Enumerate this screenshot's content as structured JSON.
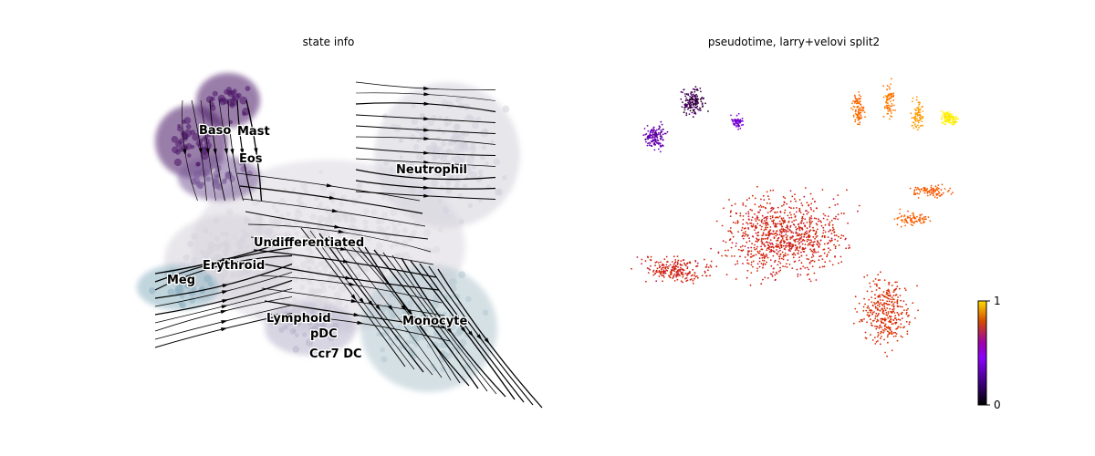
{
  "panels": [
    {
      "title": "state info"
    },
    {
      "title": "pseudotime, larry+velovi split2"
    }
  ],
  "chart_data": [
    {
      "type": "scatter",
      "title": "state info",
      "xlabel": "",
      "ylabel": "",
      "overlay": "velocity streamlines",
      "clusters": [
        {
          "name": "Baso",
          "color": "#4a1466"
        },
        {
          "name": "Mast",
          "color": "#4a1466"
        },
        {
          "name": "Eos",
          "color": "#7a5b98"
        },
        {
          "name": "Neutrophil",
          "color": "#d4d2dc"
        },
        {
          "name": "Undifferentiated",
          "color": "#dcd8e0"
        },
        {
          "name": "Erythroid",
          "color": "#d6d3dc"
        },
        {
          "name": "Meg",
          "color": "#8fb3c3"
        },
        {
          "name": "Lymphoid",
          "color": "#b8b4cc"
        },
        {
          "name": "pDC",
          "color": "#c6c2d6"
        },
        {
          "name": "Ccr7 DC",
          "color": "#5a3a8a"
        },
        {
          "name": "Monocyte",
          "color": "#b4c8d0"
        }
      ]
    },
    {
      "type": "scatter",
      "title": "pseudotime, larry+velovi split2",
      "xlabel": "",
      "ylabel": "",
      "color_scale": "gnuplot",
      "colorbar": {
        "min": 0,
        "max": 1,
        "ticks": [
          "0",
          "1"
        ],
        "placement": "bottom-right"
      }
    }
  ]
}
